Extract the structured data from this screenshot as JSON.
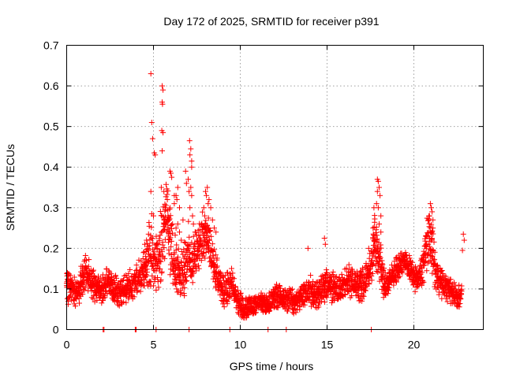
{
  "chart_data": {
    "type": "scatter",
    "title": "Day 172 of 2025, SRMTID for receiver p391",
    "xlabel": "GPS time / hours",
    "ylabel": "SRMTID / TECUs",
    "xlim": [
      0,
      24
    ],
    "ylim": [
      0,
      0.7
    ],
    "grid": true,
    "marker": "+",
    "series_color": "#ff0000",
    "x_ticks": [
      {
        "value": 0,
        "label": "0"
      },
      {
        "value": 5,
        "label": "5"
      },
      {
        "value": 10,
        "label": "10"
      },
      {
        "value": 15,
        "label": "15"
      },
      {
        "value": 20,
        "label": "20"
      }
    ],
    "y_ticks": [
      {
        "value": 0,
        "label": "0"
      },
      {
        "value": 0.1,
        "label": "0.1"
      },
      {
        "value": 0.2,
        "label": "0.2"
      },
      {
        "value": 0.3,
        "label": "0.3"
      },
      {
        "value": 0.4,
        "label": "0.4"
      },
      {
        "value": 0.5,
        "label": "0.5"
      },
      {
        "value": 0.6,
        "label": "0.6"
      },
      {
        "value": 0.7,
        "label": "0.7"
      }
    ],
    "envelope": [
      [
        0.0,
        0.11,
        0.045
      ],
      [
        0.25,
        0.1,
        0.035
      ],
      [
        0.5,
        0.095,
        0.035
      ],
      [
        0.75,
        0.11,
        0.04
      ],
      [
        1.0,
        0.13,
        0.05
      ],
      [
        1.25,
        0.13,
        0.045
      ],
      [
        1.5,
        0.11,
        0.04
      ],
      [
        1.75,
        0.1,
        0.035
      ],
      [
        2.0,
        0.095,
        0.035
      ],
      [
        2.25,
        0.11,
        0.04
      ],
      [
        2.5,
        0.12,
        0.045
      ],
      [
        2.75,
        0.1,
        0.035
      ],
      [
        3.0,
        0.09,
        0.035
      ],
      [
        3.25,
        0.1,
        0.035
      ],
      [
        3.5,
        0.105,
        0.035
      ],
      [
        3.75,
        0.11,
        0.035
      ],
      [
        4.0,
        0.12,
        0.04
      ],
      [
        4.25,
        0.13,
        0.045
      ],
      [
        4.5,
        0.15,
        0.05
      ],
      [
        4.75,
        0.19,
        0.09
      ],
      [
        5.0,
        0.17,
        0.08
      ],
      [
        5.25,
        0.16,
        0.07
      ],
      [
        5.5,
        0.22,
        0.1
      ],
      [
        5.75,
        0.28,
        0.08
      ],
      [
        6.0,
        0.22,
        0.1
      ],
      [
        6.25,
        0.17,
        0.07
      ],
      [
        6.5,
        0.13,
        0.05
      ],
      [
        6.75,
        0.16,
        0.07
      ],
      [
        7.0,
        0.18,
        0.08
      ],
      [
        7.25,
        0.17,
        0.06
      ],
      [
        7.5,
        0.2,
        0.06
      ],
      [
        7.75,
        0.22,
        0.07
      ],
      [
        8.0,
        0.24,
        0.07
      ],
      [
        8.25,
        0.19,
        0.06
      ],
      [
        8.5,
        0.15,
        0.05
      ],
      [
        8.75,
        0.12,
        0.045
      ],
      [
        9.0,
        0.1,
        0.04
      ],
      [
        9.25,
        0.1,
        0.04
      ],
      [
        9.5,
        0.11,
        0.04
      ],
      [
        9.75,
        0.08,
        0.03
      ],
      [
        10.0,
        0.06,
        0.03
      ],
      [
        10.25,
        0.05,
        0.025
      ],
      [
        10.5,
        0.06,
        0.025
      ],
      [
        10.75,
        0.06,
        0.025
      ],
      [
        11.0,
        0.065,
        0.025
      ],
      [
        11.25,
        0.07,
        0.025
      ],
      [
        11.5,
        0.06,
        0.025
      ],
      [
        11.75,
        0.07,
        0.03
      ],
      [
        12.0,
        0.085,
        0.03
      ],
      [
        12.25,
        0.08,
        0.03
      ],
      [
        12.5,
        0.07,
        0.03
      ],
      [
        12.75,
        0.075,
        0.03
      ],
      [
        13.0,
        0.07,
        0.03
      ],
      [
        13.25,
        0.07,
        0.03
      ],
      [
        13.5,
        0.08,
        0.03
      ],
      [
        13.75,
        0.085,
        0.035
      ],
      [
        14.0,
        0.1,
        0.04
      ],
      [
        14.25,
        0.085,
        0.035
      ],
      [
        14.5,
        0.09,
        0.035
      ],
      [
        14.75,
        0.1,
        0.04
      ],
      [
        15.0,
        0.11,
        0.04
      ],
      [
        15.25,
        0.1,
        0.04
      ],
      [
        15.5,
        0.11,
        0.04
      ],
      [
        15.75,
        0.1,
        0.035
      ],
      [
        16.0,
        0.11,
        0.035
      ],
      [
        16.25,
        0.12,
        0.04
      ],
      [
        16.5,
        0.12,
        0.035
      ],
      [
        16.75,
        0.11,
        0.035
      ],
      [
        17.0,
        0.11,
        0.04
      ],
      [
        17.25,
        0.13,
        0.04
      ],
      [
        17.5,
        0.15,
        0.04
      ],
      [
        17.75,
        0.22,
        0.08
      ],
      [
        18.0,
        0.18,
        0.06
      ],
      [
        18.25,
        0.12,
        0.045
      ],
      [
        18.5,
        0.11,
        0.04
      ],
      [
        18.75,
        0.13,
        0.035
      ],
      [
        19.0,
        0.15,
        0.03
      ],
      [
        19.25,
        0.16,
        0.025
      ],
      [
        19.5,
        0.17,
        0.025
      ],
      [
        19.75,
        0.15,
        0.03
      ],
      [
        20.0,
        0.13,
        0.03
      ],
      [
        20.25,
        0.12,
        0.03
      ],
      [
        20.5,
        0.15,
        0.04
      ],
      [
        20.75,
        0.22,
        0.07
      ],
      [
        21.0,
        0.2,
        0.07
      ],
      [
        21.25,
        0.14,
        0.05
      ],
      [
        21.5,
        0.12,
        0.04
      ],
      [
        21.75,
        0.11,
        0.035
      ],
      [
        22.0,
        0.1,
        0.03
      ],
      [
        22.25,
        0.09,
        0.03
      ],
      [
        22.5,
        0.08,
        0.025
      ],
      [
        22.75,
        0.085,
        0.03
      ]
    ],
    "outliers": [
      [
        4.85,
        0.63
      ],
      [
        4.9,
        0.51
      ],
      [
        4.95,
        0.47
      ],
      [
        5.05,
        0.435
      ],
      [
        5.1,
        0.43
      ],
      [
        4.85,
        0.34
      ],
      [
        4.9,
        0.285
      ],
      [
        5.0,
        0.28
      ],
      [
        5.5,
        0.6
      ],
      [
        5.55,
        0.59
      ],
      [
        5.5,
        0.56
      ],
      [
        5.52,
        0.555
      ],
      [
        5.48,
        0.49
      ],
      [
        5.55,
        0.485
      ],
      [
        5.5,
        0.44
      ],
      [
        5.45,
        0.35
      ],
      [
        5.6,
        0.34
      ],
      [
        5.95,
        0.39
      ],
      [
        6.0,
        0.385
      ],
      [
        6.05,
        0.375
      ],
      [
        6.2,
        0.33
      ],
      [
        6.3,
        0.33
      ],
      [
        6.35,
        0.32
      ],
      [
        6.2,
        0.31
      ],
      [
        6.5,
        0.3
      ],
      [
        6.4,
        0.35
      ],
      [
        5.8,
        0.32
      ],
      [
        5.7,
        0.3
      ],
      [
        6.85,
        0.39
      ],
      [
        6.9,
        0.36
      ],
      [
        7.0,
        0.37
      ],
      [
        7.05,
        0.34
      ],
      [
        7.1,
        0.3
      ],
      [
        7.15,
        0.35
      ],
      [
        7.2,
        0.33
      ],
      [
        7.25,
        0.28
      ],
      [
        7.08,
        0.465
      ],
      [
        7.1,
        0.43
      ],
      [
        7.15,
        0.445
      ],
      [
        7.2,
        0.415
      ],
      [
        7.2,
        0.4
      ],
      [
        8.0,
        0.34
      ],
      [
        8.1,
        0.35
      ],
      [
        8.05,
        0.33
      ],
      [
        8.2,
        0.32
      ],
      [
        8.15,
        0.31
      ],
      [
        8.3,
        0.3
      ],
      [
        8.4,
        0.27
      ],
      [
        7.9,
        0.3
      ],
      [
        7.95,
        0.28
      ],
      [
        8.5,
        0.25
      ],
      [
        8.6,
        0.24
      ],
      [
        17.9,
        0.37
      ],
      [
        17.95,
        0.365
      ],
      [
        18.0,
        0.35
      ],
      [
        17.9,
        0.34
      ],
      [
        18.05,
        0.33
      ],
      [
        17.85,
        0.31
      ],
      [
        17.95,
        0.3
      ],
      [
        17.7,
        0.3
      ],
      [
        18.1,
        0.28
      ],
      [
        18.0,
        0.26
      ],
      [
        18.1,
        0.24
      ],
      [
        17.65,
        0.25
      ],
      [
        17.75,
        0.23
      ],
      [
        20.95,
        0.31
      ],
      [
        21.0,
        0.3
      ],
      [
        21.05,
        0.29
      ],
      [
        20.9,
        0.28
      ],
      [
        21.1,
        0.27
      ],
      [
        20.85,
        0.27
      ],
      [
        21.1,
        0.25
      ],
      [
        20.95,
        0.24
      ],
      [
        20.75,
        0.23
      ],
      [
        21.0,
        0.22
      ],
      [
        20.7,
        0.21
      ],
      [
        14.85,
        0.225
      ],
      [
        14.9,
        0.21
      ],
      [
        13.9,
        0.2
      ],
      [
        17.4,
        0.2
      ],
      [
        22.85,
        0.235
      ],
      [
        22.9,
        0.22
      ],
      [
        22.8,
        0.195
      ],
      [
        4.5,
        0.21
      ],
      [
        4.6,
        0.22
      ],
      [
        4.7,
        0.2
      ],
      [
        4.55,
        0.18
      ],
      [
        6.4,
        0.26
      ],
      [
        6.3,
        0.25
      ],
      [
        6.5,
        0.24
      ],
      [
        6.6,
        0.22
      ],
      [
        7.4,
        0.24
      ],
      [
        7.5,
        0.22
      ],
      [
        5.2,
        0.2
      ],
      [
        5.3,
        0.21
      ],
      [
        5.9,
        0.27
      ],
      [
        6.1,
        0.26
      ],
      [
        6.7,
        0.27
      ],
      [
        7.3,
        0.26
      ],
      [
        7.6,
        0.21
      ]
    ],
    "zero_points": [
      2.1,
      2.15,
      3.95,
      4.0,
      5.15,
      7.05,
      9.4,
      11.6,
      12.65,
      17.55
    ]
  }
}
